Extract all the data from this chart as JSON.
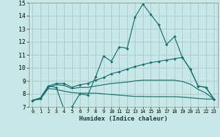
{
  "xlabel": "Humidex (Indice chaleur)",
  "bg_color": "#c8e8e8",
  "grid_color": "#aacccc",
  "line_color": "#1a7070",
  "xlim": [
    -0.5,
    23.5
  ],
  "ylim": [
    7,
    15
  ],
  "xticks": [
    0,
    1,
    2,
    3,
    4,
    5,
    6,
    7,
    8,
    9,
    10,
    11,
    12,
    13,
    14,
    15,
    16,
    17,
    18,
    19,
    20,
    21,
    22,
    23
  ],
  "yticks": [
    7,
    8,
    9,
    10,
    11,
    12,
    13,
    14,
    15
  ],
  "line1_x": [
    0,
    1,
    2,
    3,
    4,
    5,
    6,
    7,
    8,
    9,
    10,
    11,
    12,
    13,
    14,
    15,
    16,
    17,
    18,
    19,
    20,
    21,
    22,
    23
  ],
  "line1_y": [
    7.5,
    7.7,
    8.6,
    8.5,
    6.8,
    7.0,
    8.0,
    7.9,
    9.3,
    10.9,
    10.5,
    11.6,
    11.5,
    13.9,
    14.9,
    14.1,
    13.3,
    11.8,
    12.4,
    10.8,
    9.9,
    8.6,
    8.5,
    7.6
  ],
  "line2_x": [
    0,
    1,
    2,
    3,
    4,
    5,
    6,
    7,
    8,
    9,
    10,
    11,
    12,
    13,
    14,
    15,
    16,
    17,
    18,
    19,
    20,
    21,
    22,
    23
  ],
  "line2_y": [
    7.5,
    7.65,
    8.6,
    8.8,
    8.8,
    8.5,
    8.7,
    8.8,
    9.05,
    9.25,
    9.55,
    9.7,
    9.9,
    10.1,
    10.25,
    10.4,
    10.5,
    10.6,
    10.7,
    10.8,
    9.9,
    8.6,
    8.5,
    7.6
  ],
  "line3_x": [
    0,
    1,
    2,
    3,
    4,
    5,
    6,
    7,
    8,
    9,
    10,
    11,
    12,
    13,
    14,
    15,
    16,
    17,
    18,
    19,
    20,
    21,
    22,
    23
  ],
  "line3_y": [
    7.5,
    7.6,
    8.5,
    8.7,
    8.65,
    8.4,
    8.5,
    8.5,
    8.6,
    8.7,
    8.8,
    8.85,
    8.9,
    9.0,
    9.05,
    9.05,
    9.05,
    9.05,
    9.05,
    8.95,
    8.75,
    8.35,
    8.05,
    7.6
  ],
  "line4_x": [
    0,
    1,
    2,
    3,
    4,
    5,
    6,
    7,
    8,
    9,
    10,
    11,
    12,
    13,
    14,
    15,
    16,
    17,
    18,
    19,
    20,
    21,
    22,
    23
  ],
  "line4_y": [
    7.5,
    7.6,
    8.4,
    8.35,
    8.2,
    8.1,
    8.05,
    8.05,
    8.05,
    8.0,
    7.95,
    7.9,
    7.85,
    7.8,
    7.8,
    7.78,
    7.78,
    7.78,
    7.78,
    7.75,
    7.7,
    7.65,
    7.6,
    7.6
  ]
}
